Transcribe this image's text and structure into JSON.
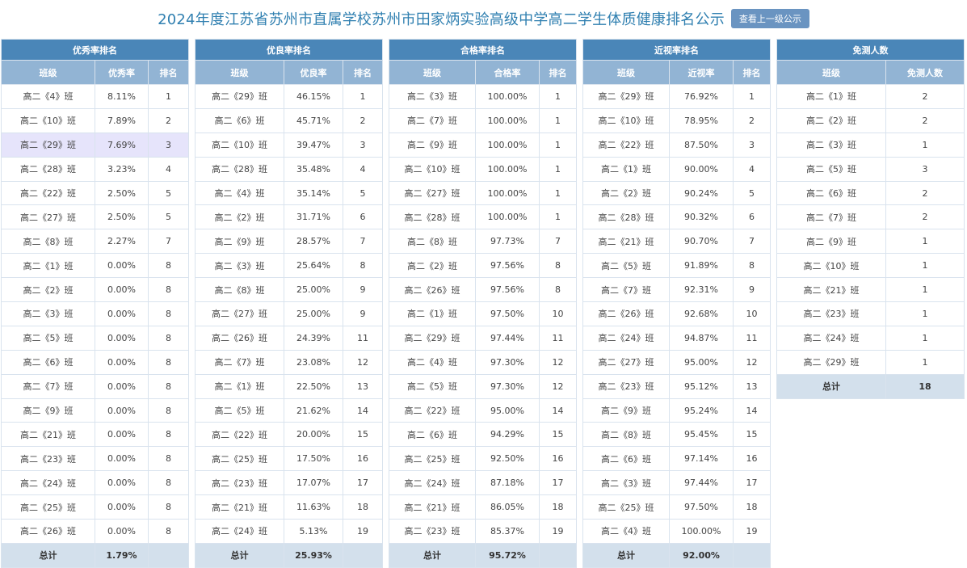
{
  "header": {
    "title": "2024年度江苏省苏州市直属学校苏州市田家炳实验高级中学高二学生体质健康排名公示",
    "up_button": "查看上一级公示"
  },
  "tables": {
    "excellent": {
      "title": "优秀率排名",
      "headers": [
        "班级",
        "优秀率",
        "排名"
      ],
      "rows": [
        [
          "高二《4》班",
          "8.11%",
          "1"
        ],
        [
          "高二《10》班",
          "7.89%",
          "2"
        ],
        [
          "高二《29》班",
          "7.69%",
          "3"
        ],
        [
          "高二《28》班",
          "3.23%",
          "4"
        ],
        [
          "高二《22》班",
          "2.50%",
          "5"
        ],
        [
          "高二《27》班",
          "2.50%",
          "5"
        ],
        [
          "高二《8》班",
          "2.27%",
          "7"
        ],
        [
          "高二《1》班",
          "0.00%",
          "8"
        ],
        [
          "高二《2》班",
          "0.00%",
          "8"
        ],
        [
          "高二《3》班",
          "0.00%",
          "8"
        ],
        [
          "高二《5》班",
          "0.00%",
          "8"
        ],
        [
          "高二《6》班",
          "0.00%",
          "8"
        ],
        [
          "高二《7》班",
          "0.00%",
          "8"
        ],
        [
          "高二《9》班",
          "0.00%",
          "8"
        ],
        [
          "高二《21》班",
          "0.00%",
          "8"
        ],
        [
          "高二《23》班",
          "0.00%",
          "8"
        ],
        [
          "高二《24》班",
          "0.00%",
          "8"
        ],
        [
          "高二《25》班",
          "0.00%",
          "8"
        ],
        [
          "高二《26》班",
          "0.00%",
          "8"
        ]
      ],
      "total": [
        "总计",
        "1.79%",
        ""
      ]
    },
    "good": {
      "title": "优良率排名",
      "headers": [
        "班级",
        "优良率",
        "排名"
      ],
      "rows": [
        [
          "高二《29》班",
          "46.15%",
          "1"
        ],
        [
          "高二《6》班",
          "45.71%",
          "2"
        ],
        [
          "高二《10》班",
          "39.47%",
          "3"
        ],
        [
          "高二《28》班",
          "35.48%",
          "4"
        ],
        [
          "高二《4》班",
          "35.14%",
          "5"
        ],
        [
          "高二《2》班",
          "31.71%",
          "6"
        ],
        [
          "高二《9》班",
          "28.57%",
          "7"
        ],
        [
          "高二《3》班",
          "25.64%",
          "8"
        ],
        [
          "高二《8》班",
          "25.00%",
          "9"
        ],
        [
          "高二《27》班",
          "25.00%",
          "9"
        ],
        [
          "高二《26》班",
          "24.39%",
          "11"
        ],
        [
          "高二《7》班",
          "23.08%",
          "12"
        ],
        [
          "高二《1》班",
          "22.50%",
          "13"
        ],
        [
          "高二《5》班",
          "21.62%",
          "14"
        ],
        [
          "高二《22》班",
          "20.00%",
          "15"
        ],
        [
          "高二《25》班",
          "17.50%",
          "16"
        ],
        [
          "高二《23》班",
          "17.07%",
          "17"
        ],
        [
          "高二《21》班",
          "11.63%",
          "18"
        ],
        [
          "高二《24》班",
          "5.13%",
          "19"
        ]
      ],
      "total": [
        "总计",
        "25.93%",
        ""
      ]
    },
    "pass": {
      "title": "合格率排名",
      "headers": [
        "班级",
        "合格率",
        "排名"
      ],
      "rows": [
        [
          "高二《3》班",
          "100.00%",
          "1"
        ],
        [
          "高二《7》班",
          "100.00%",
          "1"
        ],
        [
          "高二《9》班",
          "100.00%",
          "1"
        ],
        [
          "高二《10》班",
          "100.00%",
          "1"
        ],
        [
          "高二《27》班",
          "100.00%",
          "1"
        ],
        [
          "高二《28》班",
          "100.00%",
          "1"
        ],
        [
          "高二《8》班",
          "97.73%",
          "7"
        ],
        [
          "高二《2》班",
          "97.56%",
          "8"
        ],
        [
          "高二《26》班",
          "97.56%",
          "8"
        ],
        [
          "高二《1》班",
          "97.50%",
          "10"
        ],
        [
          "高二《29》班",
          "97.44%",
          "11"
        ],
        [
          "高二《4》班",
          "97.30%",
          "12"
        ],
        [
          "高二《5》班",
          "97.30%",
          "12"
        ],
        [
          "高二《22》班",
          "95.00%",
          "14"
        ],
        [
          "高二《6》班",
          "94.29%",
          "15"
        ],
        [
          "高二《25》班",
          "92.50%",
          "16"
        ],
        [
          "高二《24》班",
          "87.18%",
          "17"
        ],
        [
          "高二《21》班",
          "86.05%",
          "18"
        ],
        [
          "高二《23》班",
          "85.37%",
          "19"
        ]
      ],
      "total": [
        "总计",
        "95.72%",
        ""
      ]
    },
    "myopia": {
      "title": "近视率排名",
      "headers": [
        "班级",
        "近视率",
        "排名"
      ],
      "rows": [
        [
          "高二《29》班",
          "76.92%",
          "1"
        ],
        [
          "高二《10》班",
          "78.95%",
          "2"
        ],
        [
          "高二《22》班",
          "87.50%",
          "3"
        ],
        [
          "高二《1》班",
          "90.00%",
          "4"
        ],
        [
          "高二《2》班",
          "90.24%",
          "5"
        ],
        [
          "高二《28》班",
          "90.32%",
          "6"
        ],
        [
          "高二《21》班",
          "90.70%",
          "7"
        ],
        [
          "高二《5》班",
          "91.89%",
          "8"
        ],
        [
          "高二《7》班",
          "92.31%",
          "9"
        ],
        [
          "高二《26》班",
          "92.68%",
          "10"
        ],
        [
          "高二《24》班",
          "94.87%",
          "11"
        ],
        [
          "高二《27》班",
          "95.00%",
          "12"
        ],
        [
          "高二《23》班",
          "95.12%",
          "13"
        ],
        [
          "高二《9》班",
          "95.24%",
          "14"
        ],
        [
          "高二《8》班",
          "95.45%",
          "15"
        ],
        [
          "高二《6》班",
          "97.14%",
          "16"
        ],
        [
          "高二《3》班",
          "97.44%",
          "17"
        ],
        [
          "高二《25》班",
          "97.50%",
          "18"
        ],
        [
          "高二《4》班",
          "100.00%",
          "19"
        ]
      ],
      "total": [
        "总计",
        "92.00%",
        ""
      ]
    },
    "exempt": {
      "title": "免测人数",
      "headers": [
        "班级",
        "免测人数"
      ],
      "rows": [
        [
          "高二《1》班",
          "2"
        ],
        [
          "高二《2》班",
          "2"
        ],
        [
          "高二《3》班",
          "1"
        ],
        [
          "高二《5》班",
          "3"
        ],
        [
          "高二《6》班",
          "2"
        ],
        [
          "高二《7》班",
          "2"
        ],
        [
          "高二《9》班",
          "1"
        ],
        [
          "高二《10》班",
          "1"
        ],
        [
          "高二《21》班",
          "1"
        ],
        [
          "高二《23》班",
          "1"
        ],
        [
          "高二《24》班",
          "1"
        ],
        [
          "高二《29》班",
          "1"
        ]
      ],
      "total": [
        "总计",
        "18"
      ]
    }
  },
  "colors": {
    "title_text": "#2f7fb0",
    "table_title_bg": "#4a86b8",
    "column_header_bg": "#92b4d4",
    "total_row_bg": "#d3e0ec",
    "highlight_row_bg": "#e6e4fb",
    "button_bg": "#6a94c1"
  }
}
